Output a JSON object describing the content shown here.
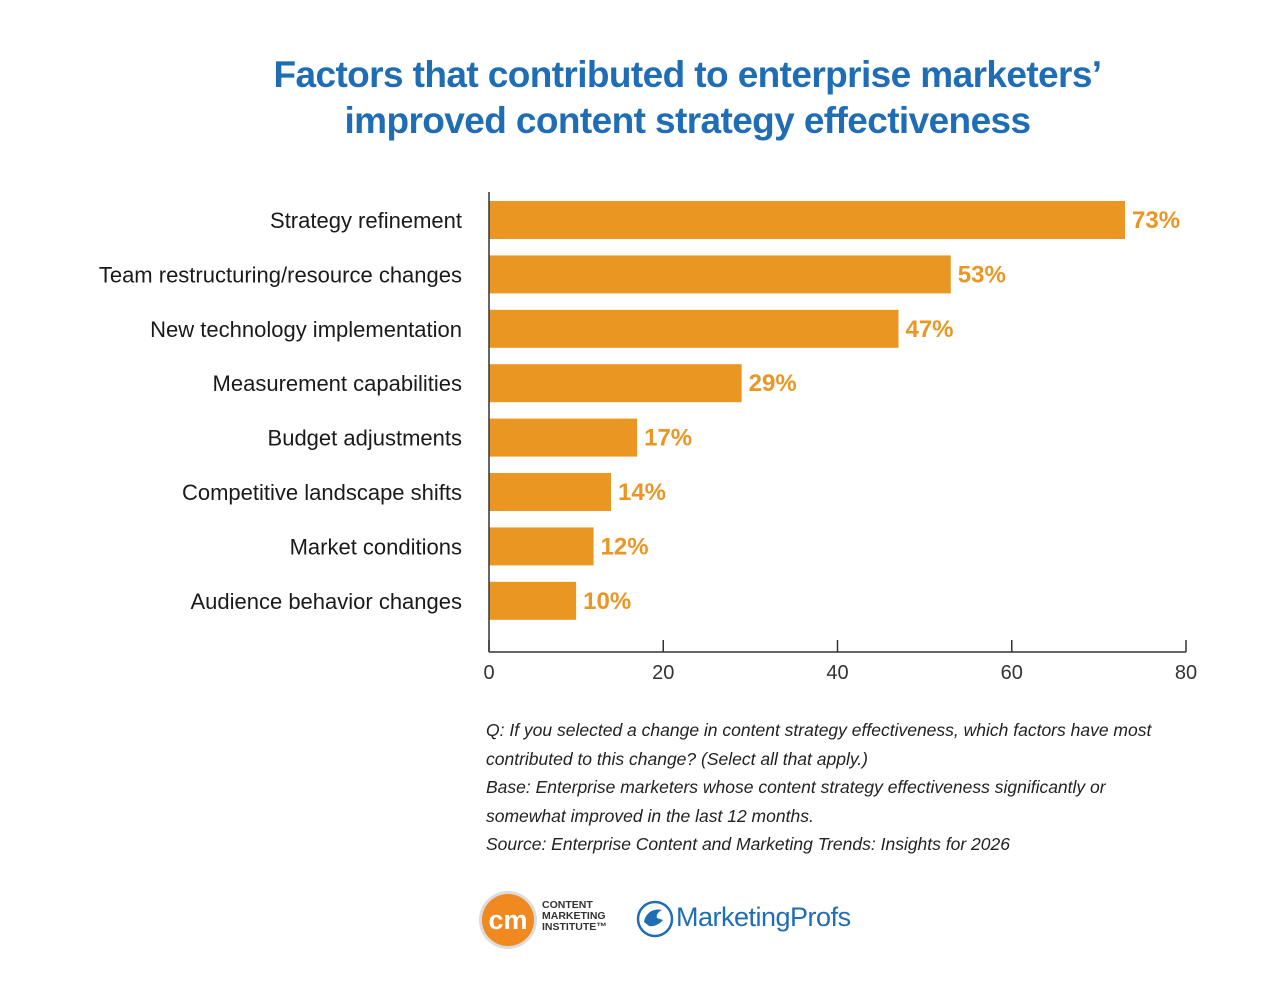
{
  "title": {
    "line1": "Factors that contributed to enterprise marketers’",
    "line2": "improved content strategy effectiveness"
  },
  "chart_data": {
    "type": "bar",
    "orientation": "horizontal",
    "categories": [
      "Strategy refinement",
      "Team restructuring/resource changes",
      "New technology implementation",
      "Measurement capabilities",
      "Budget adjustments",
      "Competitive landscape shifts",
      "Market conditions",
      "Audience behavior changes"
    ],
    "values": [
      73,
      53,
      47,
      29,
      17,
      14,
      12,
      10
    ],
    "value_labels": [
      "73%",
      "53%",
      "47%",
      "29%",
      "17%",
      "14%",
      "12%",
      "10%"
    ],
    "xlim": [
      0,
      80
    ],
    "xticks": [
      0,
      20,
      40,
      60,
      80
    ],
    "grid": false,
    "legend": "none",
    "bar_color": "#ea9623",
    "label_color": "#ea9623"
  },
  "notes": {
    "question_line1": "Q: If you selected a change in content strategy effectiveness, which factors have most",
    "question_line2": "contributed to this change? (Select all that apply.)",
    "base_line1": "Base: Enterprise marketers whose content strategy effectiveness significantly or",
    "base_line2": "somewhat improved in the last 12 months.",
    "source": "Source: Enterprise Content and Marketing Trends: Insights for 2026"
  },
  "logos": {
    "cmi": {
      "mark_text": "cm",
      "line1": "CONTENT",
      "line2": "MARKETING",
      "line3": "INSTITUTE™",
      "color": "#f0891f"
    },
    "marketingprofs": {
      "name": "MarketingProfs",
      "color": "#1f6db5"
    }
  }
}
